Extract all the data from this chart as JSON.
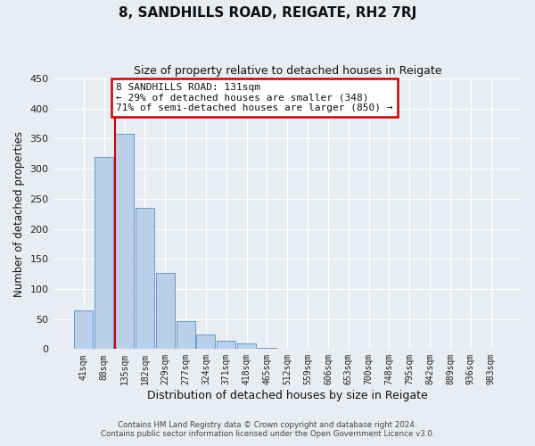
{
  "title": "8, SANDHILLS ROAD, REIGATE, RH2 7RJ",
  "subtitle": "Size of property relative to detached houses in Reigate",
  "xlabel": "Distribution of detached houses by size in Reigate",
  "ylabel": "Number of detached properties",
  "bar_labels": [
    "41sqm",
    "88sqm",
    "135sqm",
    "182sqm",
    "229sqm",
    "277sqm",
    "324sqm",
    "371sqm",
    "418sqm",
    "465sqm",
    "512sqm",
    "559sqm",
    "606sqm",
    "653sqm",
    "700sqm",
    "748sqm",
    "795sqm",
    "842sqm",
    "889sqm",
    "936sqm",
    "983sqm"
  ],
  "bar_values": [
    65,
    320,
    358,
    235,
    126,
    47,
    24,
    14,
    10,
    2,
    0,
    0,
    0,
    0,
    0,
    1,
    0,
    0,
    0,
    1,
    1
  ],
  "bar_color": "#bad0e8",
  "bar_edge_color": "#6699cc",
  "background_color": "#e8edf4",
  "grid_color": "#ffffff",
  "red_line_x": 2,
  "annotation_title": "8 SANDHILLS ROAD: 131sqm",
  "annotation_line1": "← 29% of detached houses are smaller (348)",
  "annotation_line2": "71% of semi-detached houses are larger (850) →",
  "annotation_box_facecolor": "#ffffff",
  "annotation_border_color": "#cc0000",
  "ylim": [
    0,
    450
  ],
  "yticks": [
    0,
    50,
    100,
    150,
    200,
    250,
    300,
    350,
    400,
    450
  ],
  "footer1": "Contains HM Land Registry data © Crown copyright and database right 2024.",
  "footer2": "Contains public sector information licensed under the Open Government Licence v3.0."
}
